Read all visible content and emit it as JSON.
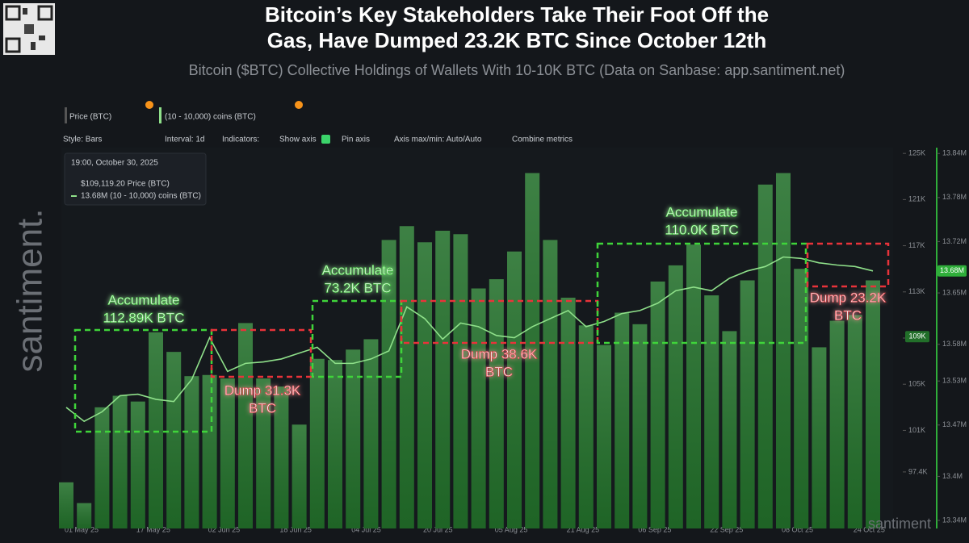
{
  "header": {
    "title": [
      "Bitcoin’s Key Stakeholders Take Their Foot Off the",
      "Gas, Have Dumped 23.2K BTC Since October 12th"
    ],
    "subtitle": "Bitcoin ($BTC) Collective Holdings of Wallets With 10-10K BTC (Data on Sanbase: app.santiment.net)"
  },
  "toolbar": {
    "metric_1": "Price (BTC)",
    "metric_2": "(10 - 10,000) coins (BTC)",
    "style": "Style: Bars",
    "interval": "Interval: 1d",
    "indicators": "Indicators:",
    "show_axis": "Show axis",
    "pin_axis": "Pin axis",
    "axis_minmax": "Axis max/min: Auto/Auto",
    "combine": "Combine metrics"
  },
  "tooltip": {
    "time": "19:00, October 30, 2025",
    "price": "$109,119.20 Price (BTC)",
    "holdings": "13.68M (10 - 10,000) coins (BTC)"
  },
  "badges": {
    "price": "109K",
    "holdings": "13.68M"
  },
  "watermarks": {
    "side": "santiment.",
    "corner": "santiment"
  },
  "chart_data": {
    "type": "bar",
    "categories": [
      "01 May 25",
      null,
      null,
      null,
      "17 May 25",
      null,
      null,
      null,
      "02 Jun 25",
      null,
      null,
      null,
      "18 Jun 25",
      null,
      null,
      null,
      "04 Jul 25",
      null,
      null,
      null,
      "20 Jul 25",
      null,
      null,
      null,
      "05 Aug 25",
      null,
      null,
      null,
      "21 Aug 25",
      null,
      null,
      null,
      "06 Sep 25",
      null,
      null,
      null,
      "22 Sep 25",
      null,
      null,
      null,
      "08 Oct 25",
      null,
      null,
      null,
      "24 Oct 25",
      null
    ],
    "series": [
      {
        "name": "Price (BTC)",
        "type": "bar",
        "color": "#226f2a",
        "values": [
          96.5,
          94.7,
          103,
          104,
          103.5,
          109.5,
          107.8,
          105.7,
          105.8,
          105.5,
          110.3,
          105.5,
          104.8,
          101.5,
          107.2,
          107.1,
          108,
          108.9,
          117.5,
          118.7,
          117.3,
          118.3,
          118,
          113.3,
          114.1,
          116.5,
          123.3,
          117.5,
          112.5,
          110.1,
          108.4,
          111.2,
          110.2,
          113.9,
          115.3,
          117.1,
          112.7,
          109.6,
          114,
          122.3,
          123.3,
          115,
          108.2,
          110.5,
          111,
          114
        ]
      },
      {
        "name": "(10 - 10,000) coins (BTC)",
        "type": "line",
        "axis": "y2",
        "color": "#8fe08a",
        "values": [
          13.494,
          13.475,
          13.488,
          13.51,
          13.512,
          13.505,
          13.502,
          13.532,
          13.589,
          13.543,
          13.554,
          13.556,
          13.56,
          13.568,
          13.576,
          13.554,
          13.554,
          13.56,
          13.571,
          13.631,
          13.615,
          13.587,
          13.609,
          13.604,
          13.592,
          13.589,
          13.604,
          13.615,
          13.626,
          13.604,
          13.611,
          13.622,
          13.626,
          13.636,
          13.653,
          13.658,
          13.653,
          13.67,
          13.68,
          13.686,
          13.699,
          13.697,
          13.691,
          13.688,
          13.686,
          13.68
        ]
      }
    ],
    "ylim": [
      92.5,
      125.5
    ],
    "yticks": [
      {
        "value": 97.4,
        "label": "97.4K"
      },
      {
        "value": 101,
        "label": "101K"
      },
      {
        "value": 105,
        "label": "105K"
      },
      {
        "value": 109,
        "label": "109K"
      },
      {
        "value": 113,
        "label": "113K"
      },
      {
        "value": 117,
        "label": "117K"
      },
      {
        "value": 121,
        "label": "121K"
      },
      {
        "value": 125,
        "label": "125K"
      }
    ],
    "y2lim": [
      13.329,
      13.848
    ],
    "y2ticks": [
      {
        "value": 13.34,
        "label": "13.34M"
      },
      {
        "value": 13.4,
        "label": "13.4M"
      },
      {
        "value": 13.47,
        "label": "13.47M"
      },
      {
        "value": 13.53,
        "label": "13.53M"
      },
      {
        "value": 13.58,
        "label": "13.58M"
      },
      {
        "value": 13.65,
        "label": "13.65M"
      },
      {
        "value": 13.72,
        "label": "13.72M"
      },
      {
        "value": 13.78,
        "label": "13.78M"
      },
      {
        "value": 13.84,
        "label": "13.84M"
      }
    ],
    "annotations": [
      {
        "lines": [
          "Accumulate",
          "112.89K BTC"
        ],
        "color": "#3fd43a"
      },
      {
        "lines": [
          "Dump 31.3K",
          "BTC"
        ],
        "color": "#e8333a"
      },
      {
        "lines": [
          "Accumulate",
          "73.2K BTC"
        ],
        "color": "#3fd43a"
      },
      {
        "lines": [
          "Dump 38.6K",
          "BTC"
        ],
        "color": "#e8333a"
      },
      {
        "lines": [
          "Accumulate",
          "110.0K BTC"
        ],
        "color": "#3fd43a"
      },
      {
        "lines": [
          "Dump 23.2K",
          "BTC"
        ],
        "color": "#e8333a"
      }
    ]
  }
}
